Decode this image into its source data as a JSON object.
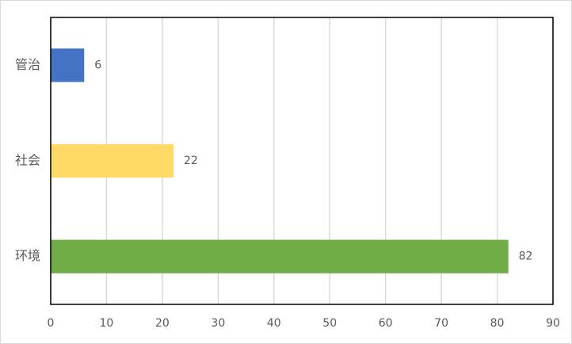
{
  "chart_data": {
    "type": "barh",
    "categories": [
      "管治",
      "社会",
      "环境"
    ],
    "values": [
      6,
      22,
      82
    ],
    "colors": [
      "#4472c4",
      "#ffd966",
      "#70ad47"
    ],
    "xlim": [
      0,
      90
    ],
    "xticks": [
      0,
      10,
      20,
      30,
      40,
      50,
      60,
      70,
      80,
      90
    ],
    "grid": true
  }
}
